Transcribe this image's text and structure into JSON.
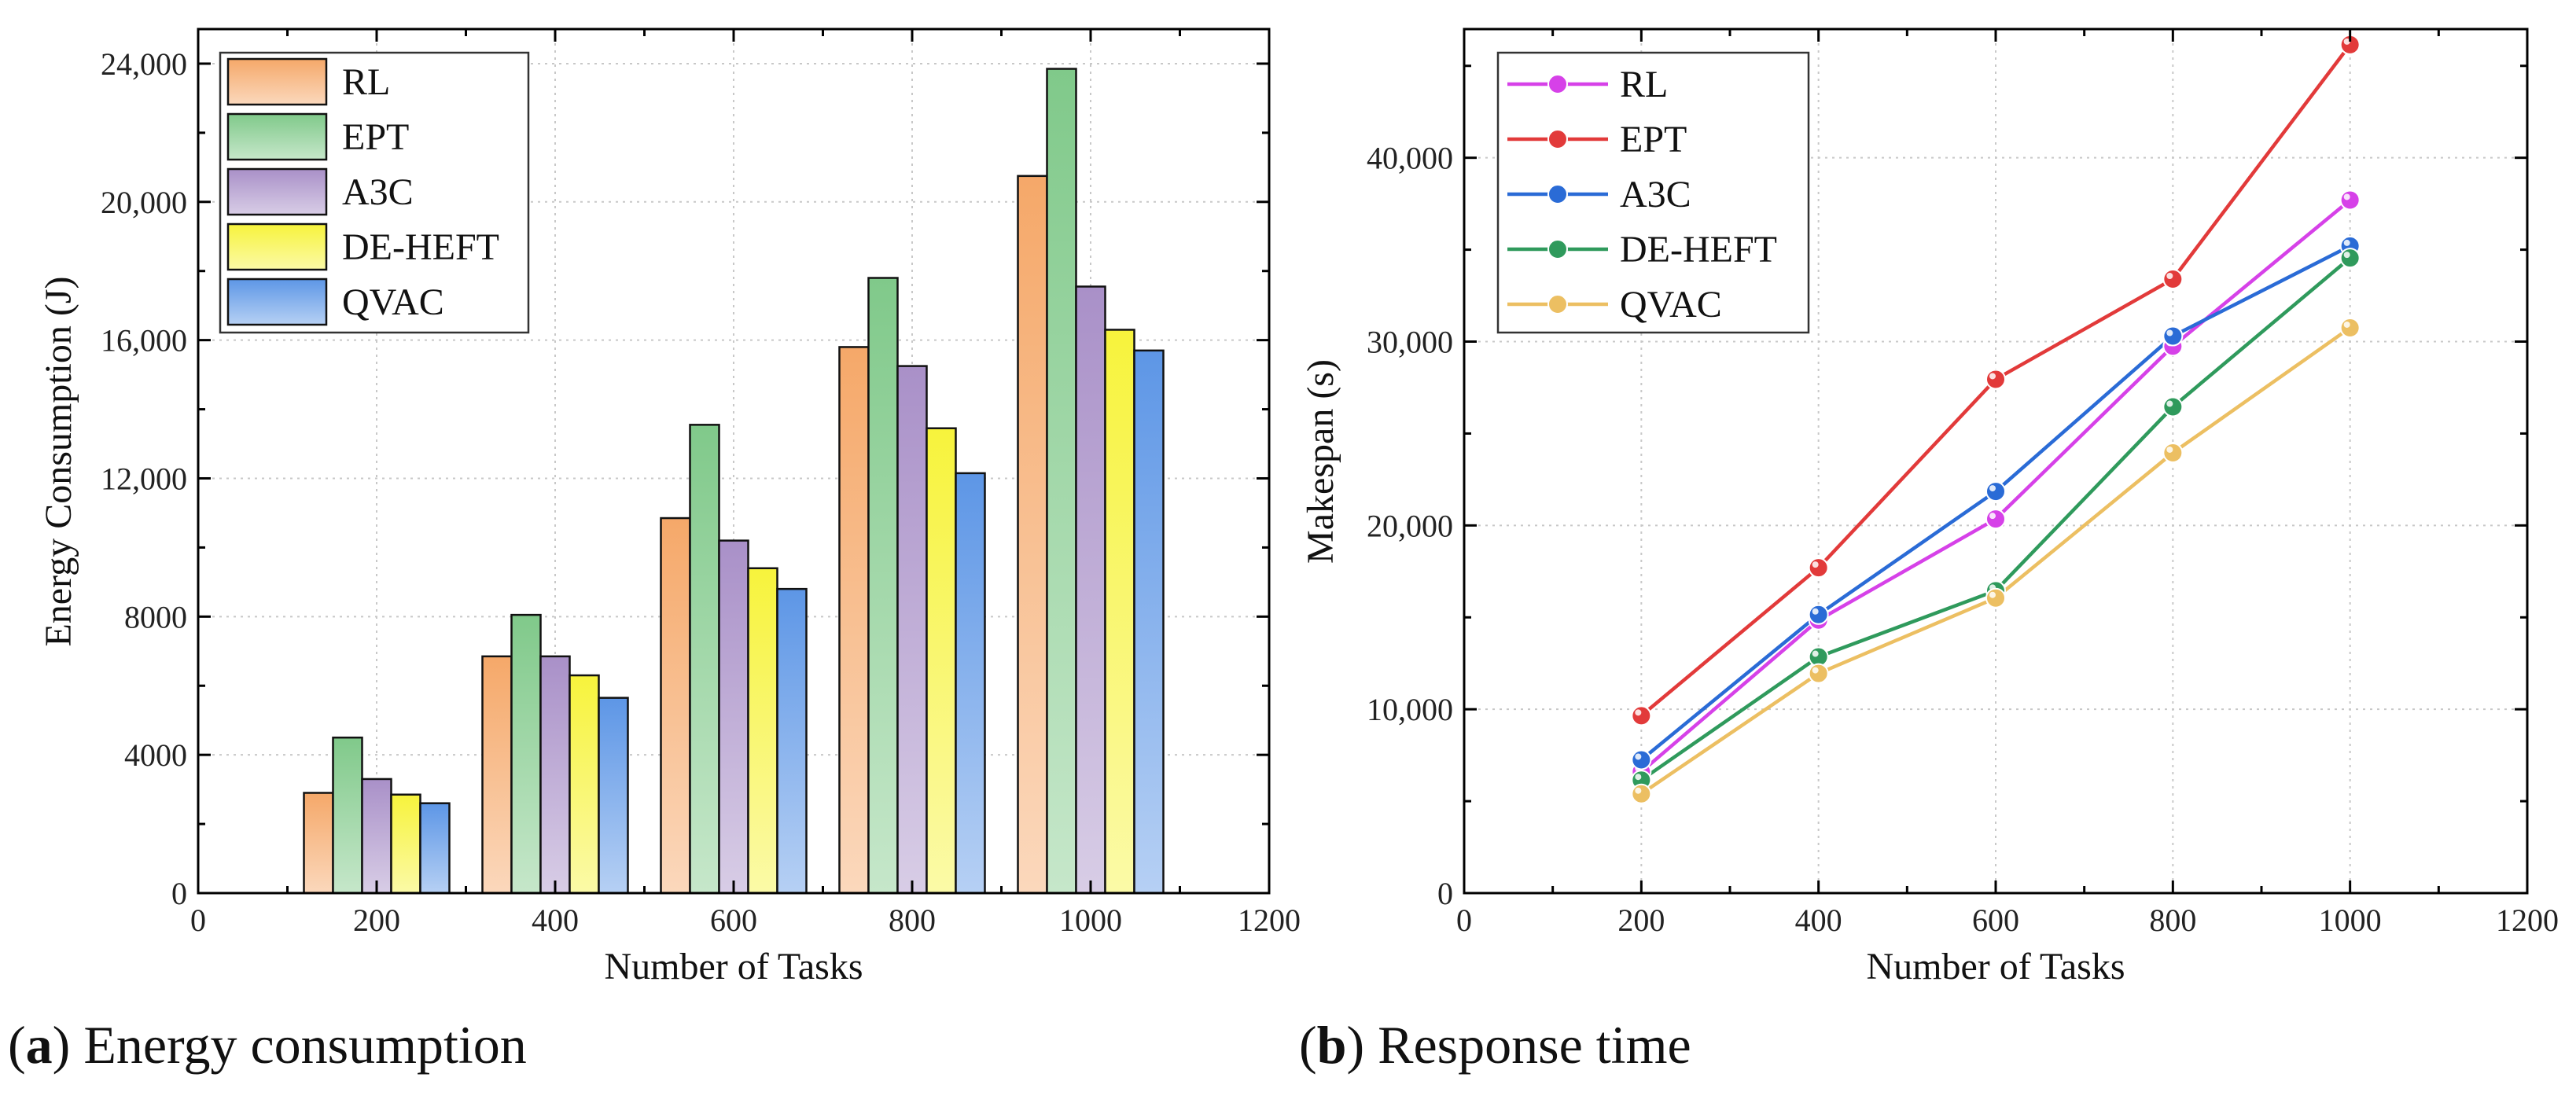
{
  "chart_data": [
    {
      "type": "bar",
      "caption_letter": "a",
      "caption_text": "Energy consumption",
      "title": "",
      "xlabel": "Number of Tasks",
      "ylabel": "Energy Consumption (J)",
      "xlim": [
        0,
        1200
      ],
      "ylim": [
        0,
        25000
      ],
      "xticks": [
        0,
        200,
        400,
        600,
        800,
        1000,
        1200
      ],
      "xtick_labels": [
        "0",
        "200",
        "400",
        "600",
        "800",
        "1000",
        "1200"
      ],
      "yticks": [
        0,
        4000,
        8000,
        12000,
        16000,
        20000,
        24000
      ],
      "ytick_labels": [
        "0",
        "4000",
        "8000",
        "12,000",
        "16,000",
        "20,000",
        "24,000"
      ],
      "categories": [
        200,
        400,
        600,
        800,
        1000
      ],
      "grid": true,
      "legend_position": "top-left",
      "series": [
        {
          "name": "RL",
          "color": "#f5a869",
          "values": [
            2900,
            6850,
            10850,
            15800,
            20750
          ]
        },
        {
          "name": "EPT",
          "color": "#80c98a",
          "values": [
            4500,
            8050,
            13550,
            17800,
            23850
          ]
        },
        {
          "name": "A3C",
          "color": "#a990c8",
          "values": [
            3300,
            6850,
            10200,
            15250,
            17550
          ]
        },
        {
          "name": "DE-HEFT",
          "color": "#f7f33c",
          "values": [
            2850,
            6300,
            9400,
            13450,
            16300
          ]
        },
        {
          "name": "QVAC",
          "color": "#5d96e6",
          "values": [
            2600,
            5650,
            8800,
            12150,
            15700
          ]
        }
      ]
    },
    {
      "type": "line",
      "caption_letter": "b",
      "caption_text": "Response time",
      "title": "",
      "xlabel": "Number of Tasks",
      "ylabel": "Makespan (s)",
      "xlim": [
        0,
        1200
      ],
      "ylim": [
        0,
        47000
      ],
      "xticks": [
        0,
        200,
        400,
        600,
        800,
        1000,
        1200
      ],
      "xtick_labels": [
        "0",
        "200",
        "400",
        "600",
        "800",
        "1000",
        "1200"
      ],
      "yticks": [
        0,
        10000,
        20000,
        30000,
        40000
      ],
      "ytick_labels": [
        "0",
        "10,000",
        "20,000",
        "30,000",
        "40,000"
      ],
      "x": [
        200,
        400,
        600,
        800,
        1000
      ],
      "grid": true,
      "legend_position": "top-left",
      "series": [
        {
          "name": "RL",
          "color": "#d641e8",
          "values": [
            6600,
            14850,
            20350,
            29750,
            37700
          ]
        },
        {
          "name": "EPT",
          "color": "#e23a3a",
          "values": [
            9650,
            17700,
            27950,
            33400,
            46150
          ]
        },
        {
          "name": "A3C",
          "color": "#2a6bd6",
          "values": [
            7250,
            15150,
            21850,
            30300,
            35200
          ]
        },
        {
          "name": "DE-HEFT",
          "color": "#2f9a5c",
          "values": [
            6150,
            12850,
            16450,
            26450,
            34550
          ]
        },
        {
          "name": "QVAC",
          "color": "#ecbf62",
          "values": [
            5400,
            11950,
            16050,
            23950,
            30750
          ]
        }
      ]
    }
  ]
}
